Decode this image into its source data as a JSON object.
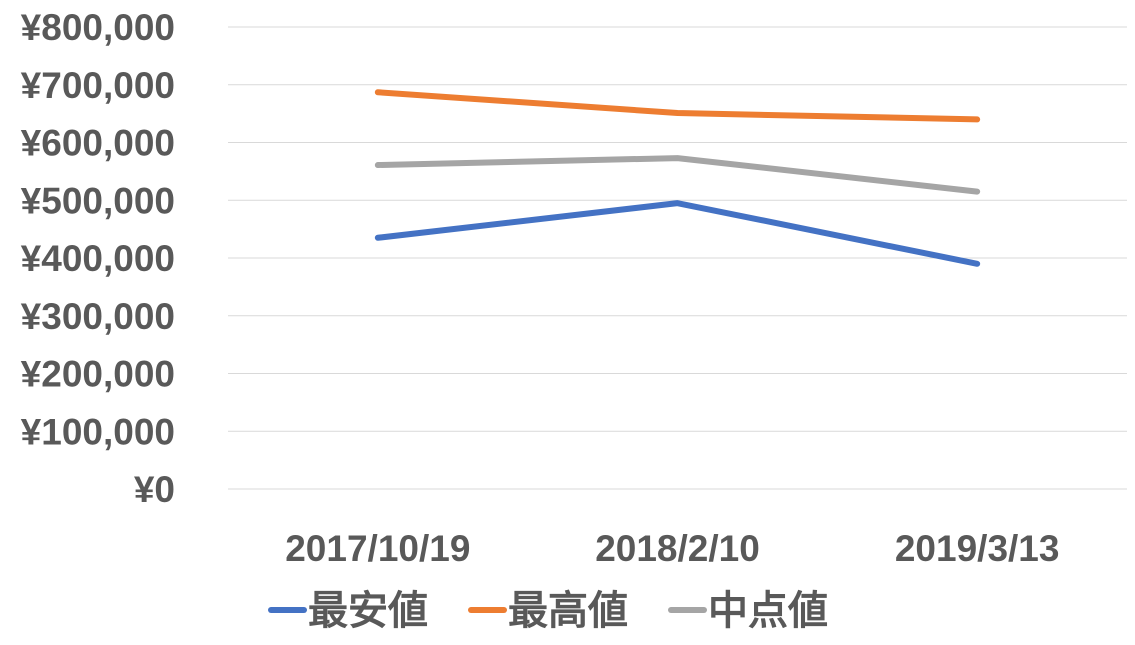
{
  "chart_data": {
    "type": "line",
    "categories": [
      "2017/10/19",
      "2018/2/10",
      "2019/3/13"
    ],
    "series": [
      {
        "name": "最安値",
        "color": "#4472C4",
        "values": [
          435000,
          495000,
          390000
        ]
      },
      {
        "name": "最高値",
        "color": "#ED7D31",
        "values": [
          687000,
          651000,
          640000
        ]
      },
      {
        "name": "中点値",
        "color": "#A5A5A5",
        "values": [
          561000,
          573000,
          515000
        ]
      }
    ],
    "ylim": [
      0,
      800000
    ],
    "y_ticks": [
      "¥0",
      "¥100,000",
      "¥200,000",
      "¥300,000",
      "¥400,000",
      "¥500,000",
      "¥600,000",
      "¥700,000",
      "¥800,000"
    ],
    "grid": true,
    "legend_position": "bottom"
  }
}
